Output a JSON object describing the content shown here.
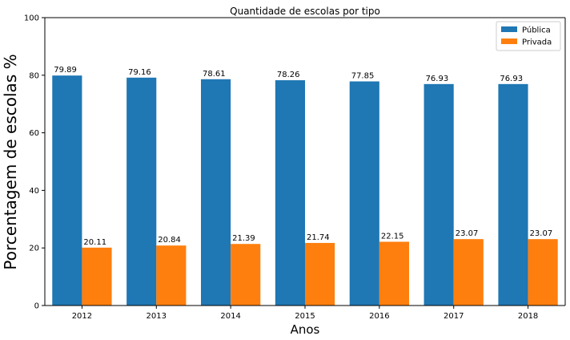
{
  "chart_data": {
    "type": "bar",
    "title": "Quantidade de escolas por tipo",
    "xlabel": "Anos",
    "ylabel": "Porcentagem de escolas %",
    "categories": [
      "2012",
      "2013",
      "2014",
      "2015",
      "2016",
      "2017",
      "2018"
    ],
    "series": [
      {
        "name": "Pública",
        "color": "#1f77b4",
        "values": [
          79.89,
          79.16,
          78.61,
          78.26,
          77.85,
          76.93,
          76.93
        ],
        "labels": [
          "79.89",
          "79.16",
          "78.61",
          "78.26",
          "77.85",
          "76.93",
          "76.93"
        ]
      },
      {
        "name": "Privada",
        "color": "#ff7f0e",
        "values": [
          20.11,
          20.84,
          21.39,
          21.74,
          22.15,
          23.07,
          23.07
        ],
        "labels": [
          "20.11",
          "20.84",
          "21.39",
          "21.74",
          "22.15",
          "23.07",
          "23.07"
        ]
      }
    ],
    "ylim": [
      0,
      100
    ],
    "yticks": [
      "0",
      "20",
      "40",
      "60",
      "80",
      "100"
    ],
    "grid": false,
    "legend_position": "top-right"
  }
}
